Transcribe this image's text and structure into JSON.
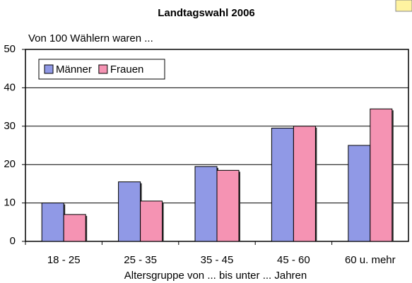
{
  "chart_data": {
    "type": "bar",
    "title": "Landtagswahl 2006",
    "subtitle": "Von 100 Wählern waren ...",
    "x_label": "Altersgruppe von ... bis unter ... Jahren",
    "categories": [
      "18 - 25",
      "25 - 35",
      "35 - 45",
      "45 - 60",
      "60 u. mehr"
    ],
    "series": [
      {
        "name": "Männer",
        "color": "#9099e6",
        "values": [
          10,
          15.5,
          19.5,
          29.5,
          25
        ]
      },
      {
        "name": "Frauen",
        "color": "#f593b3",
        "values": [
          7,
          10.5,
          18.5,
          30,
          34.5
        ]
      }
    ],
    "ylim": [
      0,
      50
    ],
    "yticks": [
      0,
      10,
      20,
      30,
      40,
      50
    ],
    "grid": true,
    "legend": "top-left"
  }
}
